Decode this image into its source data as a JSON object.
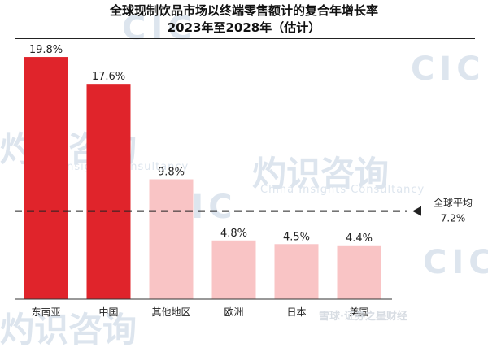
{
  "chart_data": {
    "type": "bar",
    "title": "全球现制饮品市场以终端零售额计的复合年增长率",
    "subtitle": "2023年至2028年（估计）",
    "categories": [
      "东南亚",
      "中国",
      "其他地区",
      "欧洲",
      "日本",
      "美国"
    ],
    "values": [
      19.8,
      17.6,
      9.8,
      4.8,
      4.5,
      4.4
    ],
    "value_labels": [
      "19.8%",
      "17.6%",
      "9.8%",
      "4.8%",
      "4.5%",
      "4.4%"
    ],
    "bar_colors": [
      "#e0242b",
      "#e0242b",
      "#f9c4c5",
      "#f9c4c5",
      "#f9c4c5",
      "#f9c4c5"
    ],
    "ylim": [
      0,
      21
    ],
    "reference_line": {
      "label": "全球平均",
      "value": 7.2,
      "value_label": "7.2%"
    }
  },
  "watermarks": {
    "brand": "CIC",
    "cn": "灼识咨询",
    "en": "China Insights Consultancy"
  },
  "credit": "雪球·证券之星财经"
}
